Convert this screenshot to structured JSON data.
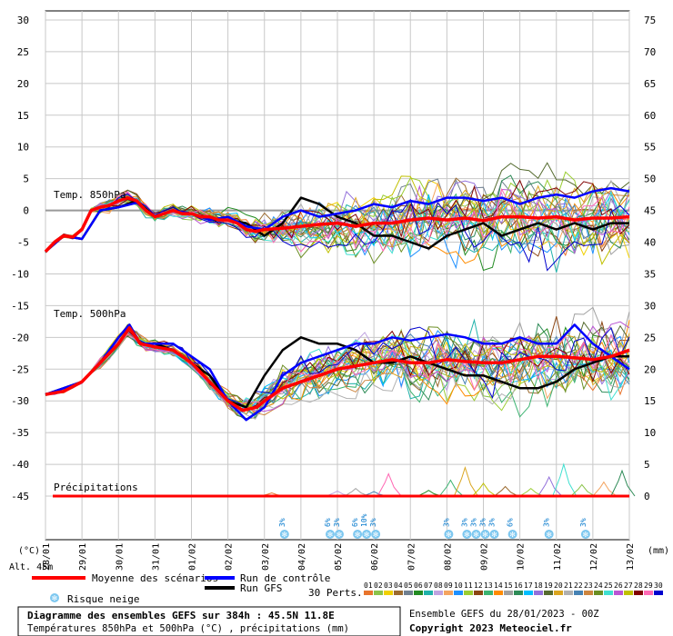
{
  "chart_data": {
    "type": "line",
    "title": "Diagramme des ensembles GEFS sur 384h : 45.5N 11.8E",
    "subtitle": "Températures 850hPa et 500hPa (°C) , précipitations (mm)",
    "run_info": "Ensemble GEFS du 28/01/2023 - 00Z",
    "copyright": "Copyright 2023 Meteociel.fr",
    "altitude": "Alt. 45m",
    "left_axis_unit": "(°C)",
    "right_axis_unit": "(mm)",
    "left_ticks": [
      30,
      25,
      20,
      15,
      10,
      5,
      0,
      -5,
      -10,
      -15,
      -20,
      -25,
      -30,
      -35,
      -40,
      -45
    ],
    "right_ticks": [
      75,
      70,
      65,
      60,
      55,
      50,
      45,
      40,
      35,
      30,
      25,
      20,
      15,
      10,
      5,
      0
    ],
    "ylim_left": [
      -45,
      30
    ],
    "x_labels": [
      "28/01",
      "29/01",
      "30/01",
      "31/01",
      "01/02",
      "02/02",
      "03/02",
      "04/02",
      "05/02",
      "06/02",
      "07/02",
      "08/02",
      "09/02",
      "10/02",
      "11/02",
      "12/02",
      "13/02"
    ],
    "panels": {
      "t850": "Temp. 850hPa",
      "t500": "Temp. 500hPa",
      "precip": "Précipitations"
    },
    "series_legend": [
      {
        "name": "Moyenne des scénarios",
        "color": "#ff0000"
      },
      {
        "name": "Run de contrôle",
        "color": "#0000ff"
      },
      {
        "name": "Run GFS",
        "color": "#000000"
      }
    ],
    "snow_legend": "Risque neige",
    "perturbations_label": "30 Perts.",
    "perturbation_ids": [
      "01",
      "02",
      "03",
      "04",
      "05",
      "06",
      "07",
      "08",
      "09",
      "10",
      "11",
      "12",
      "13",
      "14",
      "15",
      "16",
      "17",
      "18",
      "19",
      "20",
      "21",
      "22",
      "23",
      "24",
      "25",
      "26",
      "27",
      "28",
      "29",
      "30"
    ],
    "perturbation_colors": [
      "#e8742c",
      "#8bc34a",
      "#f0d000",
      "#9c6b30",
      "#708090",
      "#228b22",
      "#20b2aa",
      "#bfa3e0",
      "#f4a460",
      "#1e90ff",
      "#9acd32",
      "#8b4513",
      "#3cb371",
      "#ff8c00",
      "#a0a0a0",
      "#2e8b57",
      "#00bfff",
      "#9370db",
      "#556b2f",
      "#daa520",
      "#b0b0b0",
      "#4682b4",
      "#cd853f",
      "#6b8e23",
      "#40e0d0",
      "#ba55d3",
      "#c0c000",
      "#800000",
      "#ff69b4",
      "#0000cd"
    ],
    "mean_850": [
      [
        0,
        -6.5
      ],
      [
        0.25,
        -5
      ],
      [
        0.5,
        -4
      ],
      [
        0.75,
        -4.2
      ],
      [
        1,
        -3
      ],
      [
        1.25,
        0
      ],
      [
        1.5,
        0.5
      ],
      [
        1.75,
        0.8
      ],
      [
        2,
        1.5
      ],
      [
        2.25,
        2
      ],
      [
        2.5,
        1.5
      ],
      [
        2.75,
        0
      ],
      [
        3,
        -1
      ],
      [
        3.25,
        -0.5
      ],
      [
        3.5,
        0
      ],
      [
        3.75,
        -0.5
      ],
      [
        4,
        -0.5
      ],
      [
        4.25,
        -1
      ],
      [
        4.5,
        -1
      ],
      [
        4.75,
        -1.5
      ],
      [
        5,
        -1.5
      ],
      [
        5.25,
        -2
      ],
      [
        5.5,
        -3
      ],
      [
        5.75,
        -3.3
      ],
      [
        6,
        -3
      ],
      [
        6.5,
        -2.8
      ],
      [
        7,
        -2.5
      ],
      [
        7.5,
        -2.2
      ],
      [
        8,
        -2
      ],
      [
        8.5,
        -2.5
      ],
      [
        9,
        -2
      ],
      [
        9.5,
        -2
      ],
      [
        10,
        -1.5
      ],
      [
        10.5,
        -1.2
      ],
      [
        11,
        -1.5
      ],
      [
        11.5,
        -1.2
      ],
      [
        12,
        -1.6
      ],
      [
        12.5,
        -1
      ],
      [
        13,
        -1
      ],
      [
        13.5,
        -1.2
      ],
      [
        14,
        -1
      ],
      [
        14.5,
        -1.5
      ],
      [
        15,
        -1.2
      ],
      [
        15.5,
        -1.2
      ],
      [
        16,
        -1
      ]
    ],
    "mean_500": [
      [
        0,
        -29
      ],
      [
        0.5,
        -28.5
      ],
      [
        1,
        -27
      ],
      [
        1.5,
        -24
      ],
      [
        2,
        -21
      ],
      [
        2.3,
        -18.5
      ],
      [
        2.6,
        -21
      ],
      [
        3,
        -21.5
      ],
      [
        3.5,
        -22
      ],
      [
        4,
        -24
      ],
      [
        4.5,
        -27
      ],
      [
        5,
        -30
      ],
      [
        5.4,
        -31.5
      ],
      [
        5.8,
        -31
      ],
      [
        6,
        -30
      ],
      [
        6.5,
        -28
      ],
      [
        7,
        -27
      ],
      [
        7.5,
        -26
      ],
      [
        8,
        -25
      ],
      [
        8.5,
        -24.5
      ],
      [
        9,
        -24
      ],
      [
        9.5,
        -23.5
      ],
      [
        10,
        -24
      ],
      [
        10.5,
        -24
      ],
      [
        11,
        -23.5
      ],
      [
        11.5,
        -23.8
      ],
      [
        12,
        -24
      ],
      [
        12.5,
        -24
      ],
      [
        13,
        -23.5
      ],
      [
        13.5,
        -23
      ],
      [
        14,
        -23
      ],
      [
        14.5,
        -23.2
      ],
      [
        15,
        -23.5
      ],
      [
        15.5,
        -23
      ],
      [
        16,
        -22
      ]
    ],
    "control_850": [
      [
        0,
        -6.5
      ],
      [
        0.5,
        -4
      ],
      [
        1,
        -4.5
      ],
      [
        1.5,
        0
      ],
      [
        2,
        0.5
      ],
      [
        2.5,
        1.2
      ],
      [
        3,
        -1
      ],
      [
        3.5,
        0
      ],
      [
        4,
        -0.5
      ],
      [
        4.5,
        -1.5
      ],
      [
        5,
        -1
      ],
      [
        5.5,
        -2.5
      ],
      [
        6,
        -3
      ],
      [
        6.5,
        -1
      ],
      [
        7,
        0
      ],
      [
        7.5,
        -1
      ],
      [
        8,
        -0.5
      ],
      [
        8.5,
        0
      ],
      [
        9,
        1
      ],
      [
        9.5,
        0.5
      ],
      [
        10,
        1.5
      ],
      [
        10.5,
        1
      ],
      [
        11,
        2
      ],
      [
        11.5,
        2
      ],
      [
        12,
        1.5
      ],
      [
        12.5,
        2
      ],
      [
        13,
        1
      ],
      [
        13.5,
        2
      ],
      [
        14,
        2.5
      ],
      [
        14.5,
        2
      ],
      [
        15,
        3
      ],
      [
        15.5,
        3.5
      ],
      [
        16,
        3
      ]
    ],
    "control_500": [
      [
        0,
        -29
      ],
      [
        0.5,
        -28
      ],
      [
        1,
        -27
      ],
      [
        1.5,
        -24
      ],
      [
        2,
        -20
      ],
      [
        2.3,
        -18
      ],
      [
        2.6,
        -21
      ],
      [
        3,
        -21
      ],
      [
        3.5,
        -21
      ],
      [
        4,
        -23
      ],
      [
        4.5,
        -25
      ],
      [
        5,
        -30
      ],
      [
        5.5,
        -33
      ],
      [
        6,
        -31
      ],
      [
        6.5,
        -26
      ],
      [
        7,
        -24
      ],
      [
        7.5,
        -23
      ],
      [
        8,
        -22
      ],
      [
        8.5,
        -21
      ],
      [
        9,
        -21
      ],
      [
        9.5,
        -20
      ],
      [
        10,
        -20.5
      ],
      [
        10.5,
        -20
      ],
      [
        11,
        -19.5
      ],
      [
        11.5,
        -20
      ],
      [
        12,
        -21
      ],
      [
        12.5,
        -21
      ],
      [
        13,
        -20
      ],
      [
        13.5,
        -21
      ],
      [
        14,
        -21
      ],
      [
        14.5,
        -18
      ],
      [
        15,
        -21
      ],
      [
        15.5,
        -23
      ],
      [
        16,
        -25
      ]
    ],
    "gfs_850": [
      [
        0,
        -6.5
      ],
      [
        0.5,
        -4
      ],
      [
        1,
        -4.5
      ],
      [
        1.5,
        0
      ],
      [
        2,
        0.5
      ],
      [
        2.5,
        1.5
      ],
      [
        3,
        -1
      ],
      [
        3.5,
        0
      ],
      [
        4,
        -0.5
      ],
      [
        4.5,
        -1.5
      ],
      [
        5,
        -1.5
      ],
      [
        5.5,
        -2
      ],
      [
        6,
        -4
      ],
      [
        6.5,
        -2
      ],
      [
        7,
        2
      ],
      [
        7.5,
        1
      ],
      [
        8,
        -1
      ],
      [
        8.5,
        -2
      ],
      [
        9,
        -4
      ],
      [
        9.5,
        -4
      ],
      [
        10,
        -5
      ],
      [
        10.5,
        -6
      ],
      [
        11,
        -4
      ],
      [
        11.5,
        -3
      ],
      [
        12,
        -2
      ],
      [
        12.5,
        -4
      ],
      [
        13,
        -3
      ],
      [
        13.5,
        -2
      ],
      [
        14,
        -3
      ],
      [
        14.5,
        -2
      ],
      [
        15,
        -3
      ],
      [
        15.5,
        -2
      ],
      [
        16,
        -2
      ]
    ],
    "gfs_500": [
      [
        0,
        -29
      ],
      [
        0.5,
        -28
      ],
      [
        1,
        -27
      ],
      [
        1.5,
        -24
      ],
      [
        2,
        -20
      ],
      [
        2.3,
        -18
      ],
      [
        2.6,
        -21
      ],
      [
        3,
        -21
      ],
      [
        3.5,
        -22
      ],
      [
        4,
        -24
      ],
      [
        4.5,
        -26
      ],
      [
        5,
        -30
      ],
      [
        5.5,
        -31
      ],
      [
        6,
        -26
      ],
      [
        6.5,
        -22
      ],
      [
        7,
        -20
      ],
      [
        7.5,
        -21
      ],
      [
        8,
        -21
      ],
      [
        8.5,
        -22
      ],
      [
        9,
        -24
      ],
      [
        9.5,
        -24
      ],
      [
        10,
        -23
      ],
      [
        10.5,
        -24
      ],
      [
        11,
        -25
      ],
      [
        11.5,
        -26
      ],
      [
        12,
        -26
      ],
      [
        12.5,
        -27
      ],
      [
        13,
        -28
      ],
      [
        13.5,
        -28
      ],
      [
        14,
        -27
      ],
      [
        14.5,
        -25
      ],
      [
        15,
        -24
      ],
      [
        15.5,
        -23
      ],
      [
        16,
        -23
      ]
    ],
    "precip_events": [
      {
        "x": 6.2,
        "mm": 0.5
      },
      {
        "x": 8.0,
        "mm": 0.8
      },
      {
        "x": 8.5,
        "mm": 1.2
      },
      {
        "x": 9.0,
        "mm": 0.7
      },
      {
        "x": 9.4,
        "mm": 3.5
      },
      {
        "x": 10.5,
        "mm": 0.9
      },
      {
        "x": 11.1,
        "mm": 2.5
      },
      {
        "x": 11.5,
        "mm": 4.5
      },
      {
        "x": 12.0,
        "mm": 2.0
      },
      {
        "x": 12.6,
        "mm": 1.5
      },
      {
        "x": 13.3,
        "mm": 1.2
      },
      {
        "x": 13.8,
        "mm": 3.0
      },
      {
        "x": 14.2,
        "mm": 5.0
      },
      {
        "x": 14.7,
        "mm": 1.8
      },
      {
        "x": 15.3,
        "mm": 2.2
      },
      {
        "x": 15.8,
        "mm": 4.0
      }
    ],
    "snow_markers": [
      {
        "x": 6.55,
        "pct": "3%"
      },
      {
        "x": 7.8,
        "pct": "6%"
      },
      {
        "x": 8.05,
        "pct": "3%"
      },
      {
        "x": 8.55,
        "pct": "6%"
      },
      {
        "x": 8.8,
        "pct": "10%"
      },
      {
        "x": 9.05,
        "pct": "3%"
      },
      {
        "x": 11.05,
        "pct": "3%"
      },
      {
        "x": 11.55,
        "pct": "3%"
      },
      {
        "x": 11.8,
        "pct": "3%"
      },
      {
        "x": 12.05,
        "pct": "3%"
      },
      {
        "x": 12.3,
        "pct": "3%"
      },
      {
        "x": 12.8,
        "pct": "6%"
      },
      {
        "x": 13.8,
        "pct": "3%"
      },
      {
        "x": 14.8,
        "pct": "3%"
      }
    ]
  }
}
